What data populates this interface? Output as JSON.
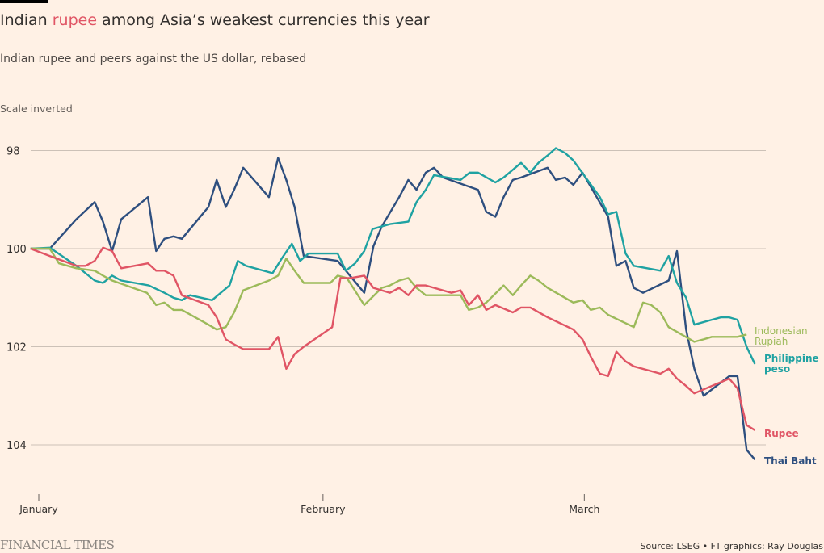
{
  "header": {
    "title_pre": "Indian ",
    "title_highlight": "rupee",
    "title_post": " among Asia’s weakest currencies this year",
    "subtitle": "Indian rupee and peers against the US dollar, rebased",
    "scale_note": "Scale inverted"
  },
  "footer": {
    "brand": "FINANCIAL TIMES",
    "source": "Source: LSEG • FT graphics: Ray Douglas"
  },
  "chart_data": {
    "type": "line",
    "title": "Indian rupee among Asia’s weakest currencies this year",
    "subtitle": "Indian rupee and peers against the US dollar, rebased",
    "xlabel": "",
    "ylabel": "",
    "y_inverted": true,
    "ylim": [
      97.5,
      104.6
    ],
    "yticks": [
      98,
      100,
      102,
      104
    ],
    "x_unit": "days since 1 January",
    "xlim": [
      -0.9,
      78.4
    ],
    "xticks": [
      {
        "day": 0,
        "label": "January"
      },
      {
        "day": 31,
        "label": "February"
      },
      {
        "day": 59.5,
        "label": "March"
      }
    ],
    "grid": true,
    "legend": "inline-right",
    "series": [
      {
        "name": "Thai Baht",
        "label": "Thai Baht",
        "color": "#2e4f7f",
        "points": [
          [
            -0.9,
            100.0
          ],
          [
            1.2,
            100.0
          ],
          [
            4.1,
            99.4
          ],
          [
            6.1,
            99.05
          ],
          [
            7.0,
            99.45
          ],
          [
            8.0,
            100.05
          ],
          [
            9.0,
            99.4
          ],
          [
            11.9,
            98.95
          ],
          [
            12.8,
            100.05
          ],
          [
            13.7,
            99.8
          ],
          [
            14.7,
            99.75
          ],
          [
            15.6,
            99.8
          ],
          [
            18.5,
            99.15
          ],
          [
            19.4,
            98.6
          ],
          [
            20.4,
            99.15
          ],
          [
            21.3,
            98.8
          ],
          [
            22.3,
            98.35
          ],
          [
            25.1,
            98.95
          ],
          [
            26.1,
            98.15
          ],
          [
            27.0,
            98.6
          ],
          [
            27.9,
            99.15
          ],
          [
            28.9,
            100.15
          ],
          [
            32.6,
            100.25
          ],
          [
            35.5,
            100.9
          ],
          [
            36.5,
            99.95
          ],
          [
            37.4,
            99.55
          ],
          [
            39.3,
            98.95
          ],
          [
            40.3,
            98.6
          ],
          [
            41.2,
            98.8
          ],
          [
            42.2,
            98.45
          ],
          [
            43.1,
            98.35
          ],
          [
            44.1,
            98.55
          ],
          [
            47.9,
            98.8
          ],
          [
            48.8,
            99.25
          ],
          [
            49.8,
            99.35
          ],
          [
            50.7,
            98.95
          ],
          [
            51.7,
            98.6
          ],
          [
            52.6,
            98.55
          ],
          [
            55.5,
            98.35
          ],
          [
            56.4,
            98.6
          ],
          [
            57.4,
            98.55
          ],
          [
            58.3,
            98.7
          ],
          [
            59.3,
            98.45
          ],
          [
            62.1,
            99.35
          ],
          [
            63.0,
            100.35
          ],
          [
            64.0,
            100.25
          ],
          [
            64.9,
            100.8
          ],
          [
            65.9,
            100.9
          ],
          [
            68.7,
            100.65
          ],
          [
            69.6,
            100.05
          ],
          [
            70.6,
            101.65
          ],
          [
            71.5,
            102.45
          ],
          [
            72.5,
            103.0
          ],
          [
            75.3,
            102.6
          ],
          [
            76.2,
            102.6
          ],
          [
            77.2,
            104.1
          ],
          [
            78.1,
            104.3
          ]
        ]
      },
      {
        "name": "Philippine peso",
        "label": "Philippine peso",
        "color": "#1fa2a2",
        "points": [
          [
            -0.9,
            100.0
          ],
          [
            1.2,
            99.98
          ],
          [
            4.1,
            100.35
          ],
          [
            6.1,
            100.65
          ],
          [
            7.0,
            100.7
          ],
          [
            8.0,
            100.55
          ],
          [
            9.0,
            100.65
          ],
          [
            12.0,
            100.75
          ],
          [
            13.7,
            100.9
          ],
          [
            14.7,
            101.0
          ],
          [
            15.6,
            101.05
          ],
          [
            16.5,
            100.95
          ],
          [
            18.9,
            101.05
          ],
          [
            20.8,
            100.75
          ],
          [
            21.7,
            100.25
          ],
          [
            22.6,
            100.35
          ],
          [
            25.5,
            100.5
          ],
          [
            26.5,
            100.2
          ],
          [
            27.6,
            99.9
          ],
          [
            28.5,
            100.25
          ],
          [
            29.4,
            100.1
          ],
          [
            30.3,
            100.1
          ],
          [
            32.6,
            100.1
          ],
          [
            33.5,
            100.45
          ],
          [
            34.5,
            100.3
          ],
          [
            35.5,
            100.05
          ],
          [
            36.4,
            99.6
          ],
          [
            38.3,
            99.5
          ],
          [
            40.3,
            99.45
          ],
          [
            41.2,
            99.05
          ],
          [
            42.2,
            98.8
          ],
          [
            43.1,
            98.5
          ],
          [
            46.0,
            98.6
          ],
          [
            47.0,
            98.45
          ],
          [
            47.9,
            98.45
          ],
          [
            49.8,
            98.65
          ],
          [
            50.7,
            98.55
          ],
          [
            52.6,
            98.25
          ],
          [
            53.6,
            98.45
          ],
          [
            54.5,
            98.25
          ],
          [
            55.5,
            98.1
          ],
          [
            56.4,
            97.95
          ],
          [
            57.4,
            98.05
          ],
          [
            58.3,
            98.2
          ],
          [
            61.2,
            98.95
          ],
          [
            62.1,
            99.3
          ],
          [
            63.0,
            99.25
          ],
          [
            64.0,
            100.1
          ],
          [
            64.9,
            100.35
          ],
          [
            67.8,
            100.45
          ],
          [
            68.7,
            100.15
          ],
          [
            69.6,
            100.7
          ],
          [
            70.6,
            101.0
          ],
          [
            71.5,
            101.55
          ],
          [
            73.4,
            101.45
          ],
          [
            74.4,
            101.4
          ],
          [
            75.3,
            101.4
          ],
          [
            76.2,
            101.45
          ],
          [
            77.2,
            102.0
          ],
          [
            78.1,
            102.35
          ]
        ]
      },
      {
        "name": "Indonesian Rupiah",
        "label": "Indonesian Rupiah",
        "color": "#9cba5a",
        "points": [
          [
            -0.9,
            100.0
          ],
          [
            1.2,
            100.0
          ],
          [
            2.2,
            100.3
          ],
          [
            4.1,
            100.4
          ],
          [
            6.1,
            100.45
          ],
          [
            7.0,
            100.55
          ],
          [
            8.0,
            100.65
          ],
          [
            11.8,
            100.9
          ],
          [
            12.8,
            101.15
          ],
          [
            13.7,
            101.1
          ],
          [
            14.7,
            101.25
          ],
          [
            15.6,
            101.25
          ],
          [
            18.5,
            101.55
          ],
          [
            19.4,
            101.65
          ],
          [
            20.4,
            101.6
          ],
          [
            21.3,
            101.3
          ],
          [
            22.3,
            100.85
          ],
          [
            25.1,
            100.65
          ],
          [
            26.1,
            100.55
          ],
          [
            27.0,
            100.2
          ],
          [
            27.9,
            100.45
          ],
          [
            28.9,
            100.7
          ],
          [
            31.8,
            100.7
          ],
          [
            32.6,
            100.55
          ],
          [
            33.6,
            100.6
          ],
          [
            35.5,
            101.15
          ],
          [
            37.4,
            100.8
          ],
          [
            38.3,
            100.75
          ],
          [
            39.3,
            100.65
          ],
          [
            40.3,
            100.6
          ],
          [
            41.2,
            100.8
          ],
          [
            42.2,
            100.95
          ],
          [
            45.0,
            100.95
          ],
          [
            46.0,
            100.95
          ],
          [
            46.9,
            101.25
          ],
          [
            47.9,
            101.2
          ],
          [
            48.8,
            101.1
          ],
          [
            50.7,
            100.75
          ],
          [
            51.7,
            100.95
          ],
          [
            52.6,
            100.75
          ],
          [
            53.6,
            100.55
          ],
          [
            54.5,
            100.65
          ],
          [
            55.5,
            100.8
          ],
          [
            58.3,
            101.1
          ],
          [
            59.3,
            101.05
          ],
          [
            60.2,
            101.25
          ],
          [
            61.2,
            101.2
          ],
          [
            62.1,
            101.35
          ],
          [
            64.9,
            101.6
          ],
          [
            65.9,
            101.1
          ],
          [
            66.8,
            101.15
          ],
          [
            67.8,
            101.3
          ],
          [
            68.7,
            101.6
          ],
          [
            71.5,
            101.9
          ],
          [
            72.5,
            101.85
          ],
          [
            73.4,
            101.8
          ],
          [
            75.3,
            101.8
          ],
          [
            76.2,
            101.8
          ],
          [
            77.2,
            101.75
          ]
        ]
      },
      {
        "name": "Rupee",
        "label": "Rupee",
        "color": "#e05565",
        "points": [
          [
            -0.9,
            100.0
          ],
          [
            1.2,
            100.15
          ],
          [
            4.1,
            100.35
          ],
          [
            5.1,
            100.35
          ],
          [
            6.1,
            100.25
          ],
          [
            7.0,
            99.98
          ],
          [
            8.0,
            100.05
          ],
          [
            9.0,
            100.4
          ],
          [
            11.9,
            100.3
          ],
          [
            12.8,
            100.45
          ],
          [
            13.7,
            100.45
          ],
          [
            14.7,
            100.55
          ],
          [
            15.6,
            100.95
          ],
          [
            18.5,
            101.15
          ],
          [
            19.4,
            101.4
          ],
          [
            20.4,
            101.85
          ],
          [
            21.3,
            101.95
          ],
          [
            22.3,
            102.05
          ],
          [
            25.1,
            102.05
          ],
          [
            26.1,
            101.8
          ],
          [
            27.0,
            102.45
          ],
          [
            27.9,
            102.15
          ],
          [
            28.9,
            102.0
          ],
          [
            32.0,
            101.6
          ],
          [
            32.9,
            100.6
          ],
          [
            34.0,
            100.6
          ],
          [
            35.5,
            100.55
          ],
          [
            36.5,
            100.8
          ],
          [
            38.3,
            100.9
          ],
          [
            39.3,
            100.8
          ],
          [
            40.3,
            100.95
          ],
          [
            41.2,
            100.75
          ],
          [
            42.2,
            100.75
          ],
          [
            45.0,
            100.9
          ],
          [
            46.0,
            100.85
          ],
          [
            46.9,
            101.15
          ],
          [
            47.9,
            100.95
          ],
          [
            48.8,
            101.25
          ],
          [
            49.8,
            101.15
          ],
          [
            51.7,
            101.3
          ],
          [
            52.6,
            101.2
          ],
          [
            53.6,
            101.2
          ],
          [
            55.5,
            101.4
          ],
          [
            58.3,
            101.65
          ],
          [
            59.3,
            101.85
          ],
          [
            60.2,
            102.2
          ],
          [
            61.2,
            102.55
          ],
          [
            62.1,
            102.6
          ],
          [
            63.0,
            102.1
          ],
          [
            64.0,
            102.3
          ],
          [
            64.9,
            102.4
          ],
          [
            67.8,
            102.55
          ],
          [
            68.7,
            102.45
          ],
          [
            69.6,
            102.65
          ],
          [
            70.6,
            102.8
          ],
          [
            71.5,
            102.95
          ],
          [
            75.3,
            102.65
          ],
          [
            76.2,
            102.85
          ],
          [
            77.2,
            103.6
          ],
          [
            78.1,
            103.7
          ]
        ]
      }
    ]
  }
}
